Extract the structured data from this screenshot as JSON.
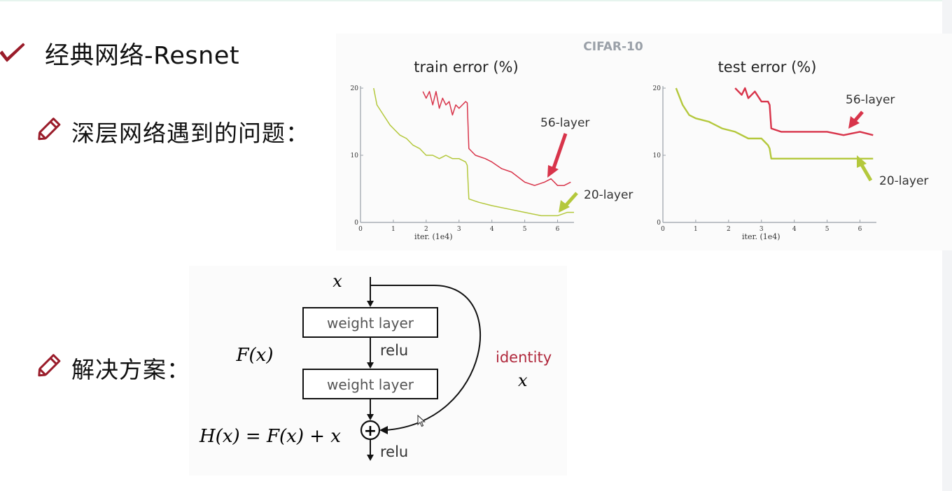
{
  "slide": {
    "title": "经典网络-Resnet",
    "bullet_problem": "深层网络遇到的问题：",
    "bullet_solution": "解决方案："
  },
  "icons": {
    "title_icon": "check-icon",
    "bullet_icon": "pencil-icon"
  },
  "colors": {
    "red_series": "#d8344a",
    "green_series": "#b4c83c",
    "accent_title_icon": "#9a1c2a",
    "identity_text": "#b0283c"
  },
  "chart_data": [
    {
      "type": "line",
      "dataset_label": "CIFAR-10",
      "title": "train error (%)",
      "xlabel": "iter. (1e4)",
      "ylabel": "",
      "xlim": [
        0,
        6.5
      ],
      "ylim": [
        0,
        20
      ],
      "x_ticks": [
        "0",
        "1",
        "2",
        "3",
        "4",
        "5",
        "6"
      ],
      "y_ticks": [
        "0",
        "10",
        "20"
      ],
      "series": [
        {
          "name": "56-layer",
          "x": [
            1.9,
            2.0,
            2.1,
            2.2,
            2.3,
            2.4,
            2.5,
            2.6,
            2.7,
            2.8,
            2.9,
            3.0,
            3.1,
            3.2,
            3.25,
            3.3,
            3.5,
            3.8,
            4.0,
            4.3,
            4.6,
            5.0,
            5.3,
            5.6,
            5.8,
            6.0,
            6.2,
            6.4
          ],
          "y": [
            19.5,
            18.5,
            19.5,
            17.5,
            19.5,
            17.0,
            18.5,
            17.5,
            18.0,
            16.0,
            17.5,
            17.0,
            17.5,
            18.0,
            17.8,
            11.0,
            10.0,
            9.5,
            9.0,
            8.0,
            7.5,
            6.0,
            5.5,
            6.0,
            6.5,
            5.5,
            5.5,
            6.0
          ]
        },
        {
          "name": "20-layer",
          "x": [
            0.4,
            0.5,
            0.7,
            0.9,
            1.0,
            1.2,
            1.4,
            1.6,
            1.8,
            2.0,
            2.2,
            2.4,
            2.6,
            2.8,
            3.0,
            3.2,
            3.25,
            3.3,
            3.6,
            4.0,
            4.5,
            5.0,
            5.5,
            6.0,
            6.3,
            6.5
          ],
          "y": [
            20.0,
            17.5,
            16.0,
            14.5,
            14.0,
            13.0,
            12.5,
            11.5,
            11.0,
            10.0,
            10.0,
            9.5,
            10.0,
            9.5,
            9.5,
            9.0,
            8.5,
            3.5,
            3.0,
            2.5,
            2.0,
            1.5,
            1.0,
            1.0,
            1.5,
            1.5
          ]
        }
      ]
    },
    {
      "type": "line",
      "title": "test error (%)",
      "xlabel": "iter. (1e4)",
      "ylabel": "",
      "xlim": [
        0,
        6.5
      ],
      "ylim": [
        0,
        20
      ],
      "x_ticks": [
        "0",
        "1",
        "2",
        "3",
        "4",
        "5",
        "6"
      ],
      "y_ticks": [
        "0",
        "10",
        "20"
      ],
      "series": [
        {
          "name": "56-layer",
          "x": [
            2.2,
            2.4,
            2.5,
            2.6,
            2.8,
            3.0,
            3.2,
            3.25,
            3.3,
            3.6,
            4.0,
            4.5,
            5.0,
            5.5,
            6.0,
            6.4
          ],
          "y": [
            20.0,
            19.0,
            20.0,
            18.5,
            19.5,
            18.0,
            18.0,
            17.5,
            14.0,
            13.5,
            13.5,
            13.5,
            13.5,
            13.0,
            13.5,
            13.0
          ]
        },
        {
          "name": "20-layer",
          "x": [
            0.4,
            0.6,
            0.8,
            1.0,
            1.4,
            1.8,
            2.2,
            2.6,
            3.0,
            3.2,
            3.25,
            3.3,
            3.8,
            4.5,
            5.0,
            5.5,
            6.0,
            6.4
          ],
          "y": [
            20.0,
            17.5,
            16.0,
            15.5,
            15.0,
            14.0,
            13.5,
            12.5,
            12.5,
            11.5,
            11.0,
            9.5,
            9.5,
            9.5,
            9.5,
            9.5,
            9.5,
            9.5
          ]
        }
      ]
    }
  ],
  "diagram": {
    "input_var": "x",
    "block1": "weight layer",
    "block2": "weight layer",
    "relu1": "relu",
    "relu2": "relu",
    "fx": "F(x)",
    "identity": "identity",
    "identity_var": "x",
    "output_eq": "H(x) = F(x) + x",
    "plus": "+"
  }
}
